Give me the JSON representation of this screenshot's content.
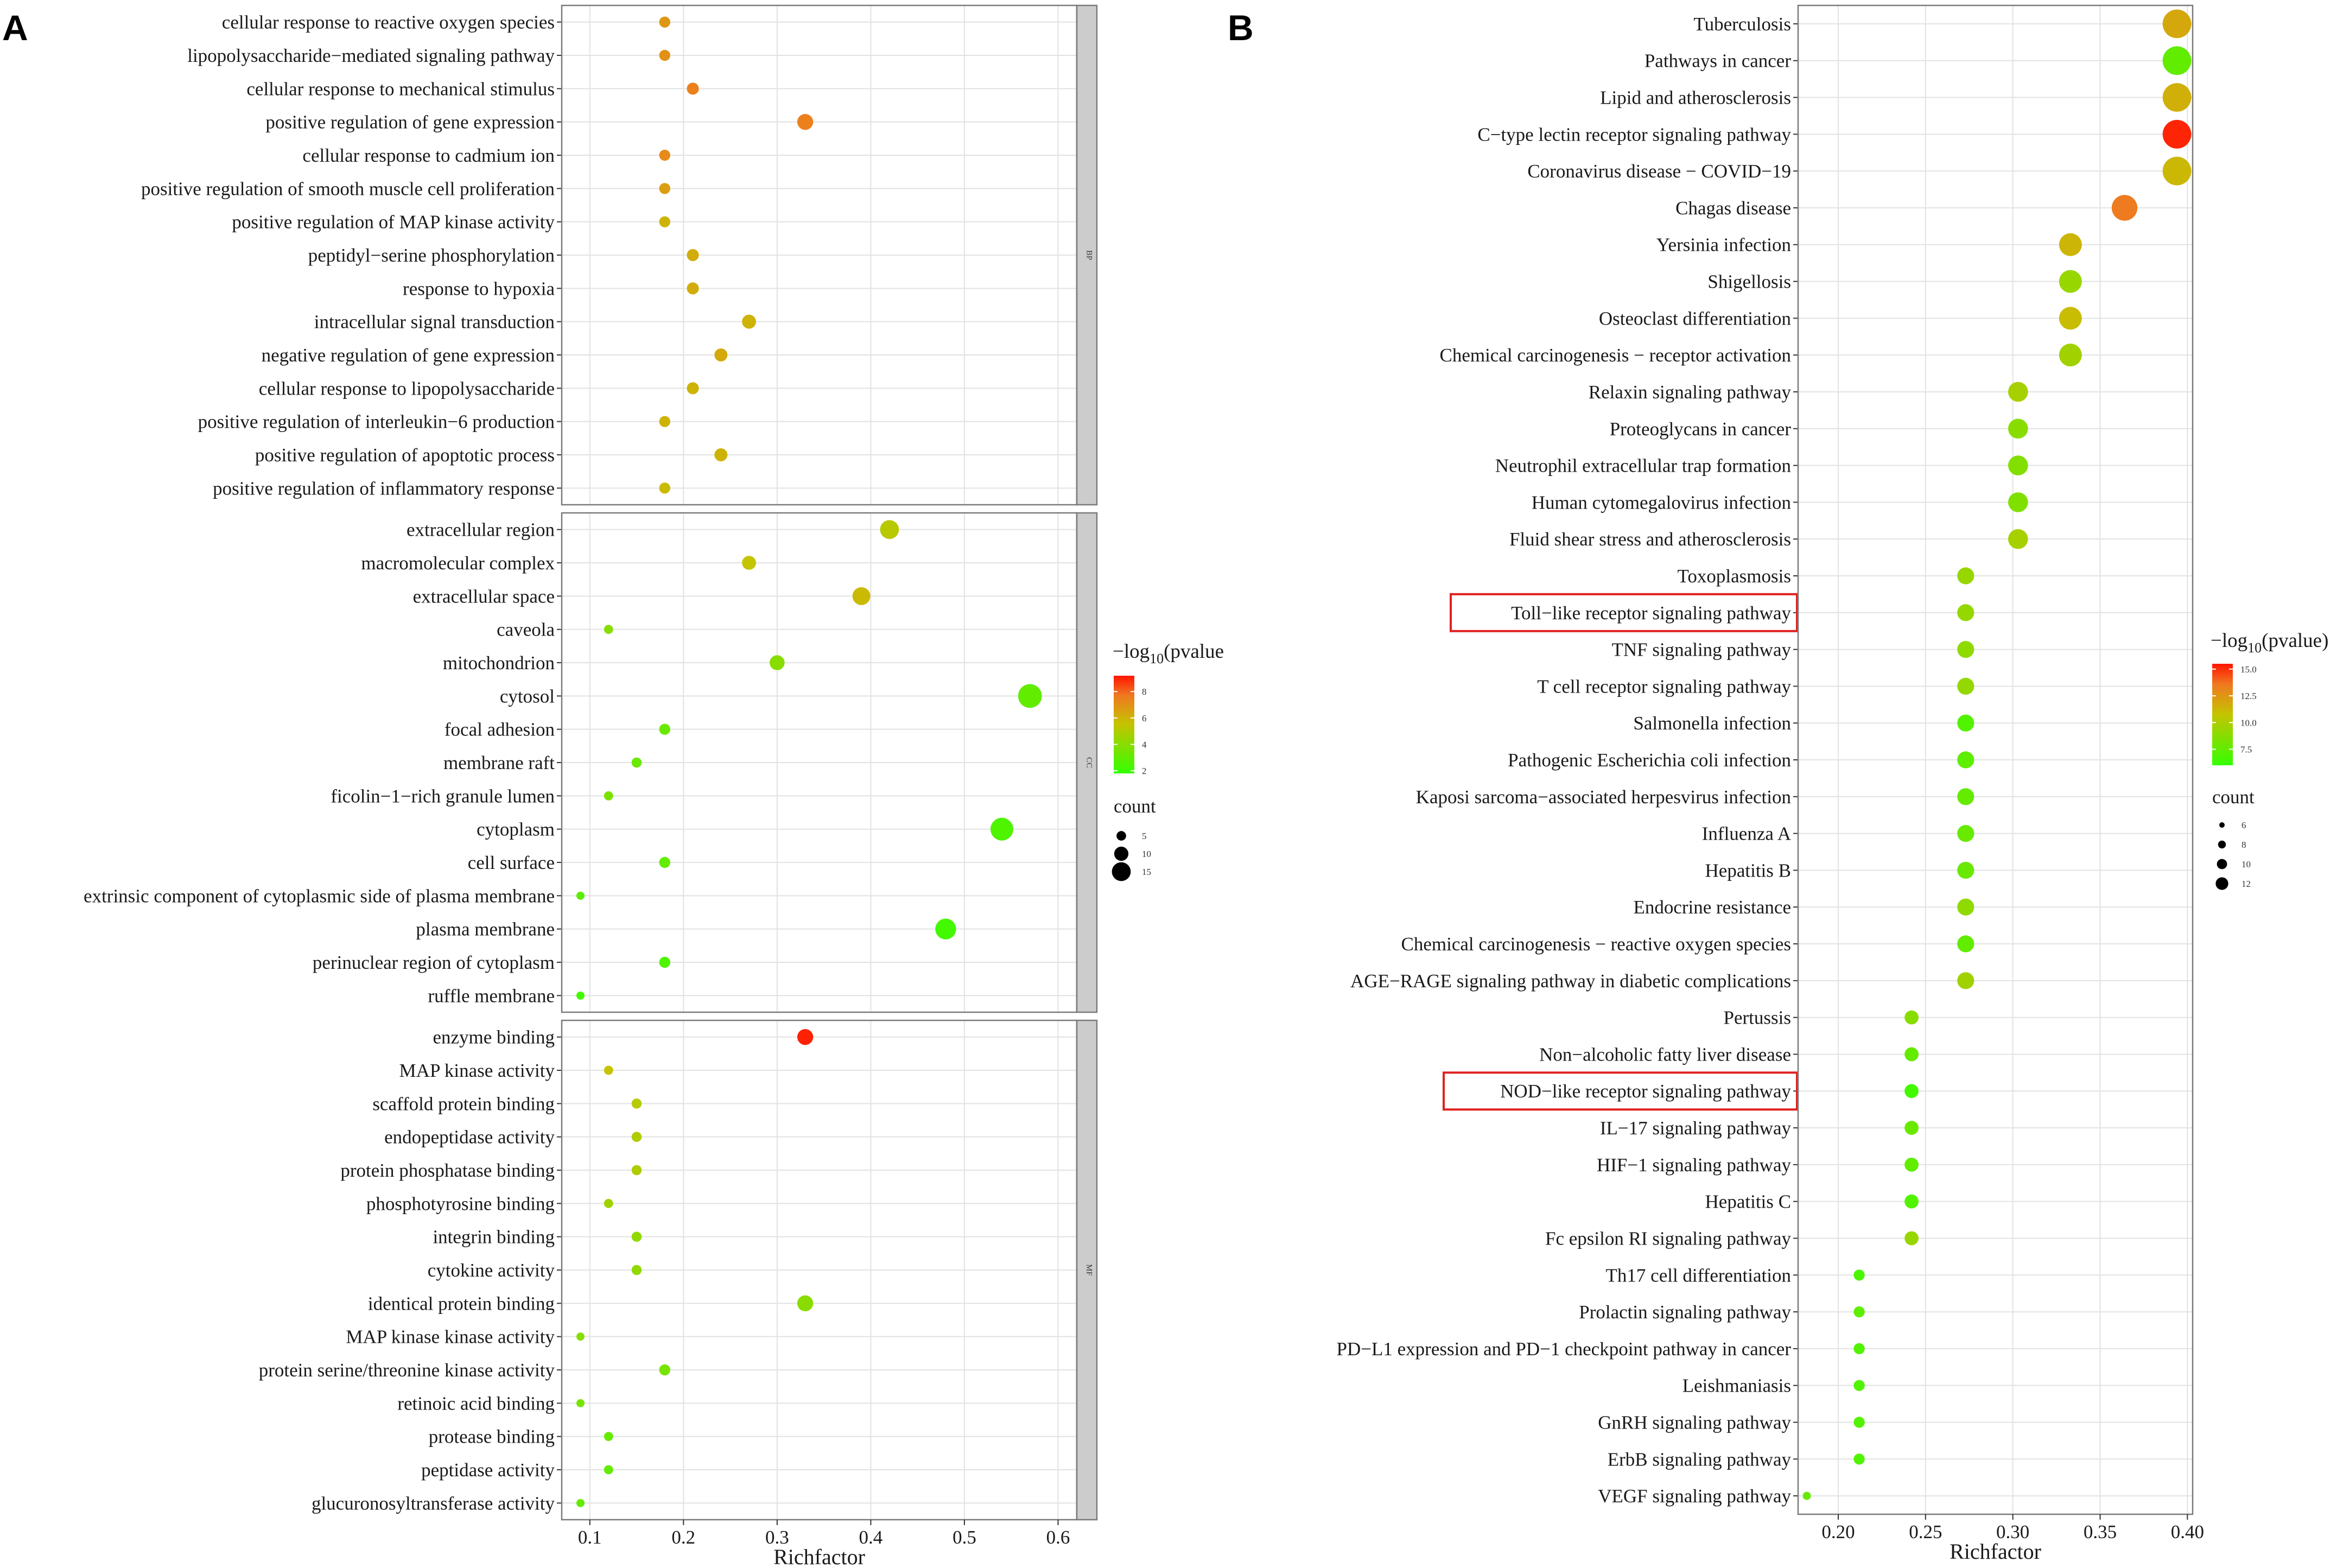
{
  "chart_data": [
    {
      "type": "scatter",
      "panel": "A",
      "xlabel": "Richfactor",
      "xlim": [
        0.07,
        0.62
      ],
      "xticks": [
        0.1,
        0.2,
        0.3,
        0.4,
        0.5,
        0.6
      ],
      "xtick_labels": [
        "0.1",
        "0.2",
        "0.3",
        "0.4",
        "0.5",
        "0.6"
      ],
      "facets": [
        {
          "strip": "BP",
          "terms": [
            {
              "term": "cellular response to reactive oxygen species",
              "x": 0.18,
              "count": 6,
              "neglog10p": 6.8
            },
            {
              "term": "lipopolysaccharide−mediated signaling pathway",
              "x": 0.18,
              "count": 6,
              "neglog10p": 7.0
            },
            {
              "term": "cellular response to mechanical stimulus",
              "x": 0.21,
              "count": 7,
              "neglog10p": 7.5
            },
            {
              "term": "positive regulation of gene expression",
              "x": 0.33,
              "count": 11,
              "neglog10p": 7.5
            },
            {
              "term": "cellular response to cadmium ion",
              "x": 0.18,
              "count": 6,
              "neglog10p": 7.2
            },
            {
              "term": "positive regulation of smooth muscle cell proliferation",
              "x": 0.18,
              "count": 6,
              "neglog10p": 6.6
            },
            {
              "term": "positive regulation of MAP kinase activity",
              "x": 0.18,
              "count": 6,
              "neglog10p": 6.0
            },
            {
              "term": "peptidyl−serine phosphorylation",
              "x": 0.21,
              "count": 7,
              "neglog10p": 6.2
            },
            {
              "term": "response to hypoxia",
              "x": 0.21,
              "count": 7,
              "neglog10p": 6.2
            },
            {
              "term": "intracellular signal transduction",
              "x": 0.27,
              "count": 9,
              "neglog10p": 6.0
            },
            {
              "term": "negative regulation of gene expression",
              "x": 0.24,
              "count": 8,
              "neglog10p": 6.3
            },
            {
              "term": "cellular response to lipopolysaccharide",
              "x": 0.21,
              "count": 7,
              "neglog10p": 6.0
            },
            {
              "term": "positive regulation of interleukin−6 production",
              "x": 0.18,
              "count": 6,
              "neglog10p": 6.0
            },
            {
              "term": "positive regulation of apoptotic process",
              "x": 0.24,
              "count": 8,
              "neglog10p": 6.0
            },
            {
              "term": "positive regulation of inflammatory response",
              "x": 0.18,
              "count": 6,
              "neglog10p": 5.8
            }
          ]
        },
        {
          "strip": "CC",
          "terms": [
            {
              "term": "extracellular region",
              "x": 0.42,
              "count": 14,
              "neglog10p": 5.2
            },
            {
              "term": "macromolecular complex",
              "x": 0.27,
              "count": 9,
              "neglog10p": 5.5
            },
            {
              "term": "extracellular space",
              "x": 0.39,
              "count": 13,
              "neglog10p": 5.8
            },
            {
              "term": "caveola",
              "x": 0.12,
              "count": 4,
              "neglog10p": 4.0
            },
            {
              "term": "mitochondrion",
              "x": 0.3,
              "count": 10,
              "neglog10p": 4.0
            },
            {
              "term": "cytosol",
              "x": 0.57,
              "count": 19,
              "neglog10p": 3.0
            },
            {
              "term": "focal adhesion",
              "x": 0.18,
              "count": 6,
              "neglog10p": 3.2
            },
            {
              "term": "membrane raft",
              "x": 0.15,
              "count": 5,
              "neglog10p": 3.2
            },
            {
              "term": "ficolin−1−rich granule lumen",
              "x": 0.12,
              "count": 4,
              "neglog10p": 3.6
            },
            {
              "term": "cytoplasm",
              "x": 0.54,
              "count": 18,
              "neglog10p": 2.5
            },
            {
              "term": "cell surface",
              "x": 0.18,
              "count": 6,
              "neglog10p": 3.0
            },
            {
              "term": "extrinsic component of cytoplasmic side of plasma membrane",
              "x": 0.09,
              "count": 3,
              "neglog10p": 2.8
            },
            {
              "term": "plasma membrane",
              "x": 0.48,
              "count": 16,
              "neglog10p": 2.2
            },
            {
              "term": "perinuclear region of cytoplasm",
              "x": 0.18,
              "count": 6,
              "neglog10p": 2.5
            },
            {
              "term": "ruffle membrane",
              "x": 0.09,
              "count": 3,
              "neglog10p": 2.2
            }
          ]
        },
        {
          "strip": "MF",
          "terms": [
            {
              "term": "enzyme binding",
              "x": 0.33,
              "count": 11,
              "neglog10p": 9.0
            },
            {
              "term": "MAP kinase activity",
              "x": 0.12,
              "count": 4,
              "neglog10p": 5.5
            },
            {
              "term": "scaffold protein binding",
              "x": 0.15,
              "count": 5,
              "neglog10p": 5.2
            },
            {
              "term": "endopeptidase activity",
              "x": 0.15,
              "count": 5,
              "neglog10p": 5.0
            },
            {
              "term": "protein phosphatase binding",
              "x": 0.15,
              "count": 5,
              "neglog10p": 5.0
            },
            {
              "term": "phosphotyrosine binding",
              "x": 0.12,
              "count": 4,
              "neglog10p": 4.5
            },
            {
              "term": "integrin binding",
              "x": 0.15,
              "count": 5,
              "neglog10p": 4.2
            },
            {
              "term": "cytokine activity",
              "x": 0.15,
              "count": 5,
              "neglog10p": 4.2
            },
            {
              "term": "identical protein binding",
              "x": 0.33,
              "count": 11,
              "neglog10p": 4.0
            },
            {
              "term": "MAP kinase kinase activity",
              "x": 0.09,
              "count": 3,
              "neglog10p": 4.0
            },
            {
              "term": "protein serine/threonine kinase activity",
              "x": 0.18,
              "count": 6,
              "neglog10p": 3.5
            },
            {
              "term": "retinoic acid binding",
              "x": 0.09,
              "count": 3,
              "neglog10p": 3.5
            },
            {
              "term": "protease binding",
              "x": 0.12,
              "count": 4,
              "neglog10p": 3.0
            },
            {
              "term": "peptidase activity",
              "x": 0.12,
              "count": 4,
              "neglog10p": 3.0
            },
            {
              "term": "glucuronosyltransferase activity",
              "x": 0.09,
              "count": 3,
              "neglog10p": 3.0
            }
          ]
        }
      ],
      "legend_color": {
        "title_prefix": "−log",
        "title_sub": "10",
        "title_suffix": "(pvalue",
        "min": 1.8,
        "max": 9.2,
        "ticks": [
          2,
          4,
          6,
          8
        ],
        "tick_labels": [
          "2",
          "4",
          "6",
          "8"
        ]
      },
      "legend_size": {
        "title": "count",
        "breaks": [
          5,
          10,
          15
        ],
        "break_labels": [
          "5",
          "10",
          "15"
        ]
      }
    },
    {
      "type": "scatter",
      "panel": "B",
      "xlabel": "Richfactor",
      "xlim": [
        0.177,
        0.403
      ],
      "xticks": [
        0.2,
        0.25,
        0.3,
        0.35,
        0.4
      ],
      "xtick_labels": [
        "0.20",
        "0.25",
        "0.30",
        "0.35",
        "0.40"
      ],
      "highlighted": [
        "Toll−like receptor signaling pathway",
        "NOD−like receptor signaling pathway"
      ],
      "terms": [
        {
          "term": "Tuberculosis",
          "x": 0.394,
          "count": 13,
          "neglog10p": 11.8
        },
        {
          "term": "Pathways in cancer",
          "x": 0.394,
          "count": 13,
          "neglog10p": 7.5
        },
        {
          "term": "Lipid and atherosclerosis",
          "x": 0.394,
          "count": 13,
          "neglog10p": 11.5
        },
        {
          "term": "C−type lectin receptor signaling pathway",
          "x": 0.394,
          "count": 13,
          "neglog10p": 15.2
        },
        {
          "term": "Coronavirus disease − COVID−19",
          "x": 0.394,
          "count": 13,
          "neglog10p": 11.2
        },
        {
          "term": "Chagas disease",
          "x": 0.364,
          "count": 12,
          "neglog10p": 13.5
        },
        {
          "term": "Yersinia infection",
          "x": 0.333,
          "count": 11,
          "neglog10p": 11.3
        },
        {
          "term": "Shigellosis",
          "x": 0.333,
          "count": 11,
          "neglog10p": 9.3
        },
        {
          "term": "Osteoclast differentiation",
          "x": 0.333,
          "count": 11,
          "neglog10p": 11.0
        },
        {
          "term": "Chemical carcinogenesis − receptor activation",
          "x": 0.333,
          "count": 11,
          "neglog10p": 9.6
        },
        {
          "term": "Relaxin signaling pathway",
          "x": 0.303,
          "count": 10,
          "neglog10p": 9.8
        },
        {
          "term": "Proteoglycans in cancer",
          "x": 0.303,
          "count": 10,
          "neglog10p": 8.8
        },
        {
          "term": "Neutrophil extracellular trap formation",
          "x": 0.303,
          "count": 10,
          "neglog10p": 8.6
        },
        {
          "term": "Human cytomegalovirus infection",
          "x": 0.303,
          "count": 10,
          "neglog10p": 8.5
        },
        {
          "term": "Fluid shear stress and atherosclerosis",
          "x": 0.303,
          "count": 10,
          "neglog10p": 9.8
        },
        {
          "term": "Toxoplasmosis",
          "x": 0.273,
          "count": 9,
          "neglog10p": 9.3
        },
        {
          "term": "Toll−like receptor signaling pathway",
          "x": 0.273,
          "count": 9,
          "neglog10p": 9.2
        },
        {
          "term": "TNF signaling pathway",
          "x": 0.273,
          "count": 9,
          "neglog10p": 9.0
        },
        {
          "term": "T cell receptor signaling pathway",
          "x": 0.273,
          "count": 9,
          "neglog10p": 9.2
        },
        {
          "term": "Salmonella infection",
          "x": 0.273,
          "count": 9,
          "neglog10p": 7.0
        },
        {
          "term": "Pathogenic Escherichia coli infection",
          "x": 0.273,
          "count": 9,
          "neglog10p": 7.4
        },
        {
          "term": "Kaposi sarcoma−associated herpesvirus infection",
          "x": 0.273,
          "count": 9,
          "neglog10p": 7.6
        },
        {
          "term": "Influenza A",
          "x": 0.273,
          "count": 9,
          "neglog10p": 7.7
        },
        {
          "term": "Hepatitis B",
          "x": 0.273,
          "count": 9,
          "neglog10p": 7.8
        },
        {
          "term": "Endocrine resistance",
          "x": 0.273,
          "count": 9,
          "neglog10p": 9.0
        },
        {
          "term": "Chemical carcinogenesis − reactive oxygen species",
          "x": 0.273,
          "count": 9,
          "neglog10p": 7.5
        },
        {
          "term": "AGE−RAGE signaling pathway in diabetic complications",
          "x": 0.273,
          "count": 9,
          "neglog10p": 9.6
        },
        {
          "term": "Pertussis",
          "x": 0.242,
          "count": 8,
          "neglog10p": 8.8
        },
        {
          "term": "Non−alcoholic fatty liver disease",
          "x": 0.242,
          "count": 8,
          "neglog10p": 7.6
        },
        {
          "term": "NOD−like receptor signaling pathway",
          "x": 0.242,
          "count": 8,
          "neglog10p": 6.5
        },
        {
          "term": "IL−17 signaling pathway",
          "x": 0.242,
          "count": 8,
          "neglog10p": 7.8
        },
        {
          "term": "HIF−1 signaling pathway",
          "x": 0.242,
          "count": 8,
          "neglog10p": 7.5
        },
        {
          "term": "Hepatitis C",
          "x": 0.242,
          "count": 8,
          "neglog10p": 7.0
        },
        {
          "term": "Fc epsilon RI signaling pathway",
          "x": 0.242,
          "count": 8,
          "neglog10p": 9.3
        },
        {
          "term": "Th17 cell differentiation",
          "x": 0.212,
          "count": 7,
          "neglog10p": 6.8
        },
        {
          "term": "Prolactin signaling pathway",
          "x": 0.212,
          "count": 7,
          "neglog10p": 7.4
        },
        {
          "term": "PD−L1 expression and PD−1 checkpoint pathway in cancer",
          "x": 0.212,
          "count": 7,
          "neglog10p": 7.0
        },
        {
          "term": "Leishmaniasis",
          "x": 0.212,
          "count": 7,
          "neglog10p": 7.0
        },
        {
          "term": "GnRH signaling pathway",
          "x": 0.212,
          "count": 7,
          "neglog10p": 7.0
        },
        {
          "term": "ErbB signaling pathway",
          "x": 0.212,
          "count": 7,
          "neglog10p": 7.0
        },
        {
          "term": "VEGF signaling pathway",
          "x": 0.182,
          "count": 6,
          "neglog10p": 7.8
        }
      ],
      "legend_color": {
        "title_prefix": "−log",
        "title_sub": "10",
        "title_suffix": "(pvalue)",
        "min": 6.0,
        "max": 15.5,
        "ticks": [
          7.5,
          10.0,
          12.5,
          15.0
        ],
        "tick_labels": [
          "7.5",
          "10.0",
          "12.5",
          "15.0"
        ]
      },
      "legend_size": {
        "title": "count",
        "breaks": [
          6,
          8,
          10,
          12
        ],
        "break_labels": [
          "6",
          "8",
          "10",
          "12"
        ]
      }
    }
  ]
}
